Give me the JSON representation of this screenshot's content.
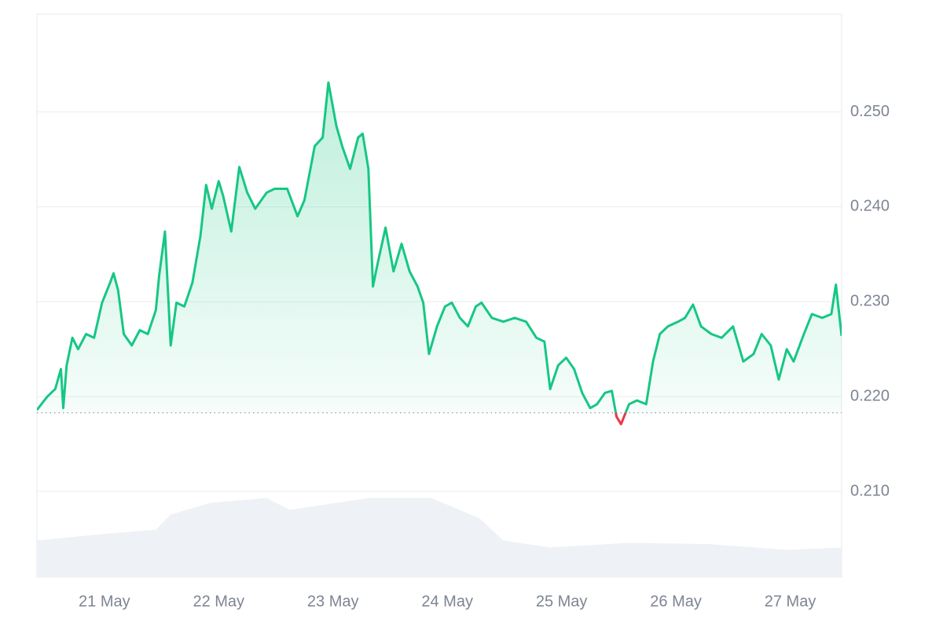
{
  "chart_data": {
    "type": "line",
    "x": [
      20.41,
      20.5,
      20.57,
      20.62,
      20.64,
      20.67,
      20.72,
      20.77,
      20.84,
      20.91,
      20.98,
      21.05,
      21.08,
      21.12,
      21.17,
      21.24,
      21.31,
      21.38,
      21.45,
      21.48,
      21.53,
      21.58,
      21.63,
      21.7,
      21.77,
      21.84,
      21.89,
      21.94,
      22.0,
      22.04,
      22.11,
      22.18,
      22.25,
      22.32,
      22.42,
      22.49,
      22.6,
      22.69,
      22.75,
      22.84,
      22.91,
      22.96,
      23.03,
      23.08,
      23.15,
      23.22,
      23.26,
      23.31,
      23.35,
      23.39,
      23.46,
      23.53,
      23.6,
      23.67,
      23.74,
      23.79,
      23.84,
      23.91,
      23.98,
      24.04,
      24.11,
      24.18,
      24.25,
      24.3,
      24.39,
      24.49,
      24.59,
      24.69,
      24.78,
      24.85,
      24.9,
      24.97,
      25.04,
      25.11,
      25.18,
      25.25,
      25.31,
      25.38,
      25.44,
      25.48,
      25.52,
      25.59,
      25.66,
      25.74,
      25.8,
      25.86,
      25.93,
      26.02,
      26.08,
      26.15,
      26.22,
      26.31,
      26.4,
      26.5,
      26.59,
      26.68,
      26.75,
      26.83,
      26.9,
      26.97,
      27.03,
      27.12,
      27.19,
      27.28,
      27.36,
      27.4,
      27.45
    ],
    "series": [
      {
        "color": "#16c784",
        "down_color": "#ea3943",
        "values": [
          0.2186,
          0.22,
          0.2208,
          0.2229,
          0.2188,
          0.2233,
          0.2262,
          0.225,
          0.2266,
          0.2262,
          0.2299,
          0.232,
          0.233,
          0.2312,
          0.2266,
          0.2254,
          0.227,
          0.2266,
          0.2291,
          0.2328,
          0.2374,
          0.2254,
          0.2299,
          0.2295,
          0.232,
          0.2369,
          0.2423,
          0.2398,
          0.2427,
          0.2411,
          0.2374,
          0.2442,
          0.2415,
          0.2398,
          0.2415,
          0.2419,
          0.2419,
          0.239,
          0.2407,
          0.2464,
          0.2473,
          0.2531,
          0.2485,
          0.2464,
          0.244,
          0.2473,
          0.2477,
          0.244,
          0.2316,
          0.234,
          0.2378,
          0.2332,
          0.2361,
          0.2332,
          0.2316,
          0.2299,
          0.2245,
          0.2274,
          0.2295,
          0.2299,
          0.2283,
          0.2274,
          0.2295,
          0.2299,
          0.2283,
          0.2279,
          0.2283,
          0.2279,
          0.2262,
          0.2258,
          0.2208,
          0.2233,
          0.2241,
          0.2229,
          0.2204,
          0.2188,
          0.2192,
          0.2204,
          0.2206,
          0.2179,
          0.2171,
          0.2192,
          0.2196,
          0.2192,
          0.2237,
          0.2266,
          0.2274,
          0.2279,
          0.2283,
          0.2297,
          0.2274,
          0.2266,
          0.2262,
          0.2274,
          0.2237,
          0.2245,
          0.2266,
          0.2254,
          0.2218,
          0.225,
          0.2237,
          0.2266,
          0.2287,
          0.2283,
          0.2287,
          0.2318,
          0.2264
        ]
      }
    ],
    "baseline": 0.2183,
    "volume": {
      "color": "#eef1f5",
      "lim": [
        0,
        100
      ],
      "x": [
        20.41,
        21.05,
        21.45,
        21.58,
        21.93,
        22.42,
        22.62,
        23.31,
        23.86,
        24.28,
        24.49,
        24.9,
        25.59,
        26.28,
        26.97,
        27.45
      ],
      "values": [
        31,
        37,
        40,
        53,
        63,
        67,
        57,
        67,
        67,
        50,
        31,
        25,
        29,
        28,
        23,
        25
      ]
    },
    "xlim": [
      20.41,
      27.45
    ],
    "xticks": [
      {
        "value": 21,
        "label": "21 May"
      },
      {
        "value": 22,
        "label": "22 May"
      },
      {
        "value": 23,
        "label": "23 May"
      },
      {
        "value": 24,
        "label": "24 May"
      },
      {
        "value": 25,
        "label": "25 May"
      },
      {
        "value": 26,
        "label": "26 May"
      },
      {
        "value": 27,
        "label": "27 May"
      }
    ],
    "ylim": [
      0.201,
      0.2603
    ],
    "yticks": [
      {
        "value": 0.21,
        "label": "0.210"
      },
      {
        "value": 0.22,
        "label": "0.220"
      },
      {
        "value": 0.23,
        "label": "0.230"
      },
      {
        "value": 0.24,
        "label": "0.240"
      },
      {
        "value": 0.25,
        "label": "0.250"
      }
    ],
    "grid": true
  }
}
